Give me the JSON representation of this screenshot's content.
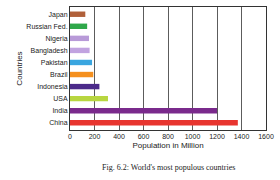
{
  "chart_data": {
    "type": "bar",
    "orientation": "horizontal",
    "categories": [
      "China",
      "India",
      "USA",
      "Indonesia",
      "Brazil",
      "Pakistan",
      "Bangladesh",
      "Nigeria",
      "Russian Fed.",
      "Japan"
    ],
    "values": [
      1370,
      1200,
      310,
      240,
      190,
      180,
      160,
      155,
      140,
      125
    ],
    "colors": [
      "#e8352f",
      "#7a2a8c",
      "#b8d640",
      "#4b2a8a",
      "#f5901e",
      "#3aa6e0",
      "#c1a3e0",
      "#b89ad8",
      "#2fa84a",
      "#b0603a"
    ],
    "xlabel": "Population in Million",
    "ylabel": "Countries",
    "caption": "Fig. 6.2: World's most populous countries",
    "xlim": [
      0,
      1600
    ],
    "xticks": [
      0,
      200,
      400,
      600,
      800,
      1000,
      1200,
      1400,
      1600
    ],
    "grid": true
  }
}
